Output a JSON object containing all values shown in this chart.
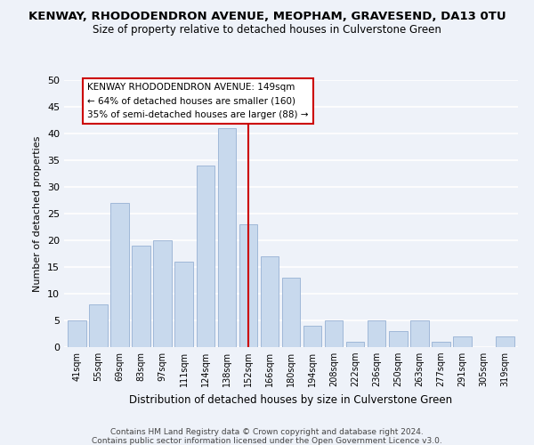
{
  "title": "KENWAY, RHODODENDRON AVENUE, MEOPHAM, GRAVESEND, DA13 0TU",
  "subtitle": "Size of property relative to detached houses in Culverstone Green",
  "xlabel": "Distribution of detached houses by size in Culverstone Green",
  "ylabel": "Number of detached properties",
  "bar_labels": [
    "41sqm",
    "55sqm",
    "69sqm",
    "83sqm",
    "97sqm",
    "111sqm",
    "124sqm",
    "138sqm",
    "152sqm",
    "166sqm",
    "180sqm",
    "194sqm",
    "208sqm",
    "222sqm",
    "236sqm",
    "250sqm",
    "263sqm",
    "277sqm",
    "291sqm",
    "305sqm",
    "319sqm"
  ],
  "bar_heights": [
    5,
    8,
    27,
    19,
    20,
    16,
    34,
    41,
    23,
    17,
    13,
    4,
    5,
    1,
    5,
    3,
    5,
    1,
    2,
    0,
    2
  ],
  "bar_color": "#c8d9ed",
  "bar_edge_color": "#a0b8d8",
  "vline_x": 8,
  "vline_color": "#cc0000",
  "ylim": [
    0,
    50
  ],
  "yticks": [
    0,
    5,
    10,
    15,
    20,
    25,
    30,
    35,
    40,
    45,
    50
  ],
  "annotation_title": "KENWAY RHODODENDRON AVENUE: 149sqm",
  "annotation_line1": "← 64% of detached houses are smaller (160)",
  "annotation_line2": "35% of semi-detached houses are larger (88) →",
  "annotation_box_color": "#ffffff",
  "annotation_box_edge": "#cc0000",
  "footer1": "Contains HM Land Registry data © Crown copyright and database right 2024.",
  "footer2": "Contains public sector information licensed under the Open Government Licence v3.0.",
  "background_color": "#eef2f9"
}
